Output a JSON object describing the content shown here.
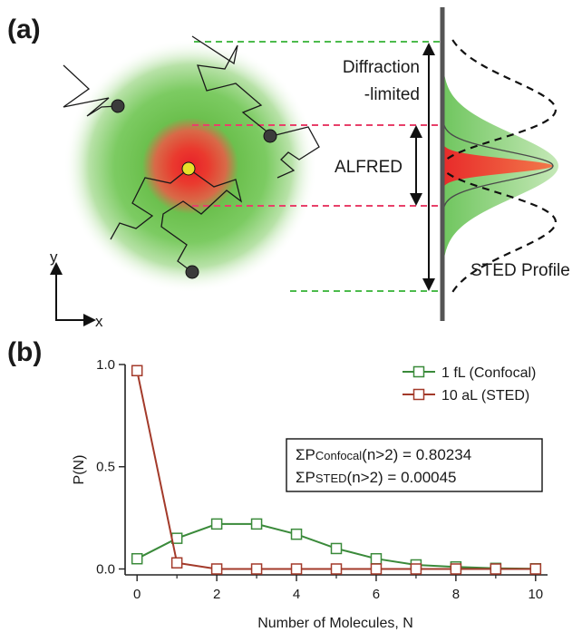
{
  "panel_a": {
    "label": "(a)",
    "diffraction_label_line1": "Diffraction",
    "diffraction_label_line2": "-limited",
    "alfred_label": "ALFRED",
    "sted_profile_label": "STED Profile",
    "axis_y": "y",
    "axis_x": "x"
  },
  "panel_b": {
    "label": "(b)",
    "sum_box": {
      "line1_prefix": "ΣP",
      "line1_sub": "Confocal",
      "line1_rest": "(n>2) = 0.80234",
      "line2_prefix": "ΣP",
      "line2_sub": "STED",
      "line2_rest": "(n>2) = 0.00045"
    }
  },
  "colors": {
    "confocal": "#3a8a3a",
    "sted": "#a33a2a",
    "green_dash": "#4cbb4c",
    "red_dash": "#e8406a",
    "axis": "#222222"
  },
  "chart_data": {
    "type": "line",
    "title": "",
    "xlabel": "Number of Molecules, N",
    "ylabel": "P(N)",
    "xlim": [
      -0.3,
      10.3
    ],
    "ylim": [
      -0.02,
      1.0
    ],
    "xticks": [
      0,
      2,
      4,
      6,
      8,
      10
    ],
    "xtick_labels": [
      "0",
      "2",
      "4",
      "6",
      "8",
      "10"
    ],
    "yticks": [
      0.0,
      0.5,
      1.0
    ],
    "ytick_labels": [
      "0.0",
      "0.5",
      "1.0"
    ],
    "legend_position": "top-right",
    "marker": "open-square",
    "series": [
      {
        "name": "1 fL (Confocal)",
        "color": "#3a8a3a",
        "x": [
          0,
          1,
          2,
          3,
          4,
          5,
          6,
          7,
          8,
          9,
          10
        ],
        "values": [
          0.05,
          0.15,
          0.22,
          0.22,
          0.17,
          0.1,
          0.05,
          0.02,
          0.01,
          0.003,
          0.001
        ]
      },
      {
        "name": "10 aL (STED)",
        "color": "#a33a2a",
        "x": [
          0,
          1,
          2,
          3,
          4,
          5,
          6,
          7,
          8,
          9,
          10
        ],
        "values": [
          0.97,
          0.03,
          0.0,
          0.0,
          0.0,
          0.0,
          0.0,
          0.0,
          0.0,
          0.0,
          0.0
        ]
      }
    ]
  }
}
